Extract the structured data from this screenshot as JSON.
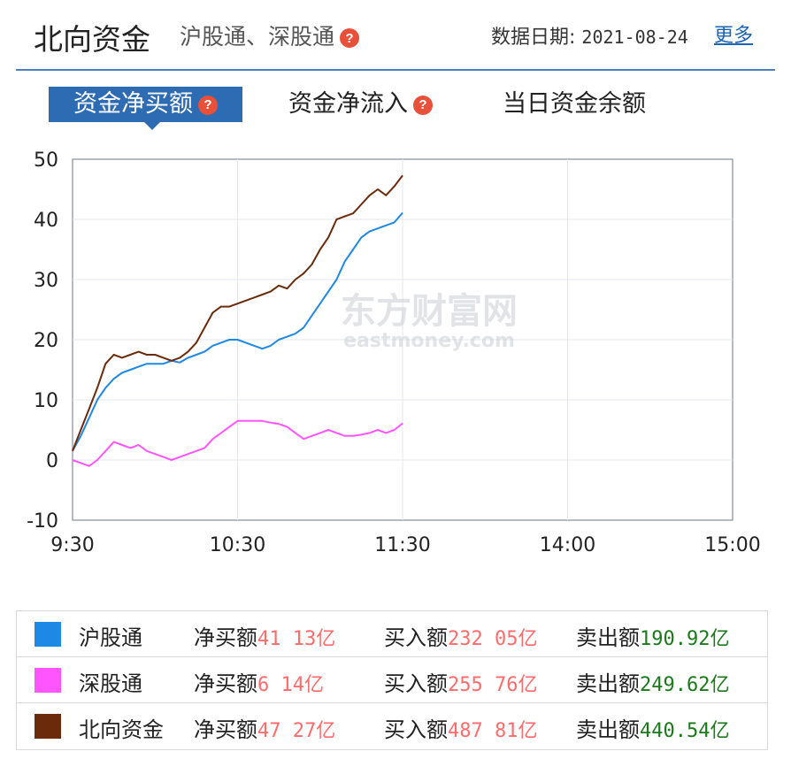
{
  "header": {
    "title": "北向资金",
    "subtitle": "沪股通、深股通",
    "date_label": "数据日期:",
    "date_value": "2021-08-24",
    "more_label": "更多"
  },
  "tabs": [
    {
      "label": "资金净买额",
      "active": true,
      "has_help": true
    },
    {
      "label": "资金净流入",
      "active": false,
      "has_help": true
    },
    {
      "label": "当日资金余额",
      "active": false,
      "has_help": false
    }
  ],
  "watermark": {
    "cn": "东方财富网",
    "en": "eastmoney.com"
  },
  "colors": {
    "accent": "#2d6bb3",
    "hgt": "#1e88e5",
    "sgt": "#ff55ff",
    "north": "#6b2a0a"
  },
  "chart_data": {
    "type": "line",
    "x_ticks": [
      "9:30",
      "10:30",
      "11:30",
      "14:00",
      "15:00"
    ],
    "y_ticks": [
      "50",
      "40",
      "30",
      "20",
      "10",
      "0",
      "-10"
    ],
    "ylim": [
      -10,
      50
    ],
    "grid": true,
    "series": [
      {
        "name": "沪股通",
        "color": "#1e88e5",
        "x": [
          0,
          3,
          6,
          9,
          12,
          15,
          18,
          21,
          24,
          27,
          30,
          33,
          36,
          39,
          42,
          45,
          48,
          51,
          54,
          57,
          60,
          63,
          66,
          69,
          72,
          75,
          78,
          81,
          84,
          87,
          90,
          93,
          96,
          99,
          102,
          105,
          108,
          111,
          114,
          117,
          120
        ],
        "y": [
          1.5,
          4,
          7,
          10,
          12,
          13.5,
          14.5,
          15,
          15.5,
          16,
          16,
          16,
          16.5,
          16.2,
          17,
          17.5,
          18,
          19,
          19.5,
          20,
          20,
          19.5,
          19,
          18.5,
          19,
          20,
          20.5,
          21,
          22,
          24,
          26,
          28,
          30,
          33,
          35,
          37,
          38,
          38.5,
          39,
          39.5,
          41.1
        ]
      },
      {
        "name": "深股通",
        "color": "#ff55ff",
        "x": [
          0,
          3,
          6,
          9,
          12,
          15,
          18,
          21,
          24,
          27,
          30,
          33,
          36,
          39,
          42,
          45,
          48,
          51,
          54,
          57,
          60,
          63,
          66,
          69,
          72,
          75,
          78,
          81,
          84,
          87,
          90,
          93,
          96,
          99,
          102,
          105,
          108,
          111,
          114,
          117,
          120
        ],
        "y": [
          0,
          -0.5,
          -1,
          0,
          1.5,
          3,
          2.5,
          2,
          2.5,
          1.5,
          1,
          0.5,
          0,
          0.5,
          1,
          1.5,
          2,
          3.5,
          4.5,
          5.5,
          6.5,
          6.5,
          6.5,
          6.5,
          6.2,
          6,
          5.5,
          4.5,
          3.5,
          4,
          4.5,
          5,
          4.5,
          4,
          4,
          4.2,
          4.5,
          5,
          4.5,
          5,
          6.1
        ]
      },
      {
        "name": "北向资金",
        "color": "#6b2a0a",
        "x": [
          0,
          3,
          6,
          9,
          12,
          15,
          18,
          21,
          24,
          27,
          30,
          33,
          36,
          39,
          42,
          45,
          48,
          51,
          54,
          57,
          60,
          63,
          66,
          69,
          72,
          75,
          78,
          81,
          84,
          87,
          90,
          93,
          96,
          99,
          102,
          105,
          108,
          111,
          114,
          117,
          120
        ],
        "y": [
          1.5,
          5,
          8.5,
          12,
          16,
          17.5,
          17,
          17.5,
          18,
          17.5,
          17.5,
          17,
          16.5,
          17,
          18,
          19.5,
          22,
          24.5,
          25.5,
          25.5,
          26,
          26.5,
          27,
          27.5,
          28,
          29,
          28.5,
          30,
          31,
          32.5,
          35,
          37,
          40,
          40.5,
          41,
          42.5,
          44,
          45,
          44,
          45.5,
          47.3
        ]
      }
    ]
  },
  "legend": [
    {
      "name": "沪股通",
      "color": "#1e88e5",
      "net_label": "净买额",
      "net_value": "41 13亿",
      "buy_label": "买入额",
      "buy_value": "232 05亿",
      "sell_label": "卖出额",
      "sell_value": "190.92亿"
    },
    {
      "name": "深股通",
      "color": "#ff55ff",
      "net_label": "净买额",
      "net_value": "6 14亿",
      "buy_label": "买入额",
      "buy_value": "255 76亿",
      "sell_label": "卖出额",
      "sell_value": "249.62亿"
    },
    {
      "name": "北向资金",
      "color": "#6b2a0a",
      "net_label": "净买额",
      "net_value": "47 27亿",
      "buy_label": "买入额",
      "buy_value": "487 81亿",
      "sell_label": "卖出额",
      "sell_value": "440.54亿"
    }
  ]
}
